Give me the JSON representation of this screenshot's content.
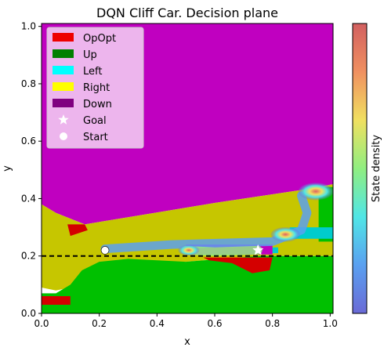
{
  "chart_data": {
    "type": "heatmap",
    "title": "DQN Cliff Car. Decision plane",
    "xlabel": "x",
    "ylabel": "y",
    "colorbar_label": "State density",
    "xlim": [
      0.0,
      1.01
    ],
    "ylim": [
      0.0,
      1.01
    ],
    "xticks": [
      "0.0",
      "0.2",
      "0.4",
      "0.6",
      "0.8",
      "1.0"
    ],
    "yticks": [
      "0.0",
      "0.2",
      "0.4",
      "0.6",
      "0.8",
      "1.0"
    ],
    "legend_position": "top-left",
    "legend": [
      {
        "label": "OpOpt",
        "kind": "patch",
        "color": "#ee0000"
      },
      {
        "label": "Up",
        "kind": "patch",
        "color": "#008000"
      },
      {
        "label": "Left",
        "kind": "patch",
        "color": "#00ffff"
      },
      {
        "label": "Right",
        "kind": "patch",
        "color": "#ffff00"
      },
      {
        "label": "Down",
        "kind": "patch",
        "color": "#800080"
      },
      {
        "label": "Goal",
        "kind": "star",
        "color": "#ffffff"
      },
      {
        "label": "Start",
        "kind": "circle",
        "color": "#ffffff"
      }
    ],
    "region_colors": {
      "Down": "#c000c0",
      "Right": "#c6c600",
      "Up": "#00c000",
      "Left": "#00cccc",
      "OpOpt": "#d40000"
    },
    "cliff_line_y": 0.2,
    "goal": {
      "x": 0.75,
      "y": 0.22
    },
    "start": {
      "x": 0.22,
      "y": 0.22
    },
    "decision_regions": [
      {
        "action": "Down",
        "polygon": [
          [
            0,
            1.01
          ],
          [
            1.01,
            1.01
          ],
          [
            1.01,
            0.45
          ],
          [
            0.9,
            0.43
          ],
          [
            0.6,
            0.385
          ],
          [
            0.42,
            0.355
          ],
          [
            0.3,
            0.335
          ],
          [
            0.15,
            0.31
          ],
          [
            0.05,
            0.35
          ],
          [
            0,
            0.38
          ]
        ]
      },
      {
        "action": "Right",
        "polygon": [
          [
            0,
            0.38
          ],
          [
            0.05,
            0.35
          ],
          [
            0.15,
            0.31
          ],
          [
            0.3,
            0.335
          ],
          [
            0.42,
            0.355
          ],
          [
            0.6,
            0.385
          ],
          [
            0.9,
            0.43
          ],
          [
            1.01,
            0.45
          ],
          [
            1.01,
            0.2
          ],
          [
            0.75,
            0.2
          ],
          [
            0.5,
            0.18
          ],
          [
            0.25,
            0.17
          ],
          [
            0.15,
            0.14
          ],
          [
            0.1,
            0.09
          ],
          [
            0.05,
            0.08
          ],
          [
            0,
            0.09
          ]
        ]
      },
      {
        "action": "Up",
        "polygon": [
          [
            0,
            0
          ],
          [
            1.01,
            0
          ],
          [
            1.01,
            0.2
          ],
          [
            0.75,
            0.2
          ],
          [
            0.5,
            0.18
          ],
          [
            0.3,
            0.19
          ],
          [
            0.2,
            0.18
          ],
          [
            0.14,
            0.15
          ],
          [
            0.1,
            0.1
          ],
          [
            0.05,
            0.07
          ],
          [
            0,
            0.07
          ]
        ]
      },
      {
        "action": "Up",
        "polygon": [
          [
            0.96,
            0.44
          ],
          [
            1.01,
            0.44
          ],
          [
            1.01,
            0.25
          ],
          [
            0.96,
            0.25
          ]
        ]
      },
      {
        "action": "OpOpt",
        "polygon": [
          [
            0.0,
            0.06
          ],
          [
            0.1,
            0.06
          ],
          [
            0.1,
            0.03
          ],
          [
            0.0,
            0.03
          ]
        ]
      },
      {
        "action": "OpOpt",
        "polygon": [
          [
            0.09,
            0.31
          ],
          [
            0.15,
            0.31
          ],
          [
            0.16,
            0.29
          ],
          [
            0.1,
            0.27
          ]
        ]
      },
      {
        "action": "OpOpt",
        "polygon": [
          [
            0.56,
            0.195
          ],
          [
            0.8,
            0.195
          ],
          [
            0.79,
            0.15
          ],
          [
            0.73,
            0.14
          ],
          [
            0.66,
            0.175
          ],
          [
            0.58,
            0.185
          ]
        ]
      },
      {
        "action": "Left",
        "polygon": [
          [
            0.86,
            0.3
          ],
          [
            1.01,
            0.3
          ],
          [
            1.01,
            0.26
          ],
          [
            0.86,
            0.26
          ]
        ]
      },
      {
        "action": "Left",
        "polygon": [
          [
            0.77,
            0.23
          ],
          [
            0.82,
            0.23
          ],
          [
            0.82,
            0.21
          ],
          [
            0.77,
            0.21
          ]
        ]
      },
      {
        "action": "Down",
        "polygon": [
          [
            0.5,
            0.24
          ],
          [
            0.8,
            0.24
          ],
          [
            0.8,
            0.205
          ],
          [
            0.5,
            0.205
          ]
        ]
      }
    ],
    "density_segments": [
      {
        "points": [
          [
            0.22,
            0.225
          ],
          [
            0.45,
            0.24
          ],
          [
            0.62,
            0.245
          ],
          [
            0.8,
            0.25
          ],
          [
            0.85,
            0.27
          ],
          [
            0.9,
            0.29
          ],
          [
            0.92,
            0.35
          ],
          [
            0.9,
            0.41
          ]
        ],
        "value": 0.15
      },
      {
        "points": [
          [
            0.5,
            0.22
          ],
          [
            0.6,
            0.215
          ],
          [
            0.75,
            0.22
          ]
        ],
        "value": 0.45
      }
    ],
    "density_hotspots": [
      {
        "x": 0.95,
        "y": 0.425,
        "value": 1.0
      },
      {
        "x": 0.845,
        "y": 0.275,
        "value": 0.7
      },
      {
        "x": 0.51,
        "y": 0.22,
        "value": 0.3
      }
    ],
    "colorbar_colors": [
      "#6a6ad6",
      "#5aa0f0",
      "#50e6e6",
      "#90ee80",
      "#f0e060",
      "#f09060",
      "#d26060"
    ]
  }
}
